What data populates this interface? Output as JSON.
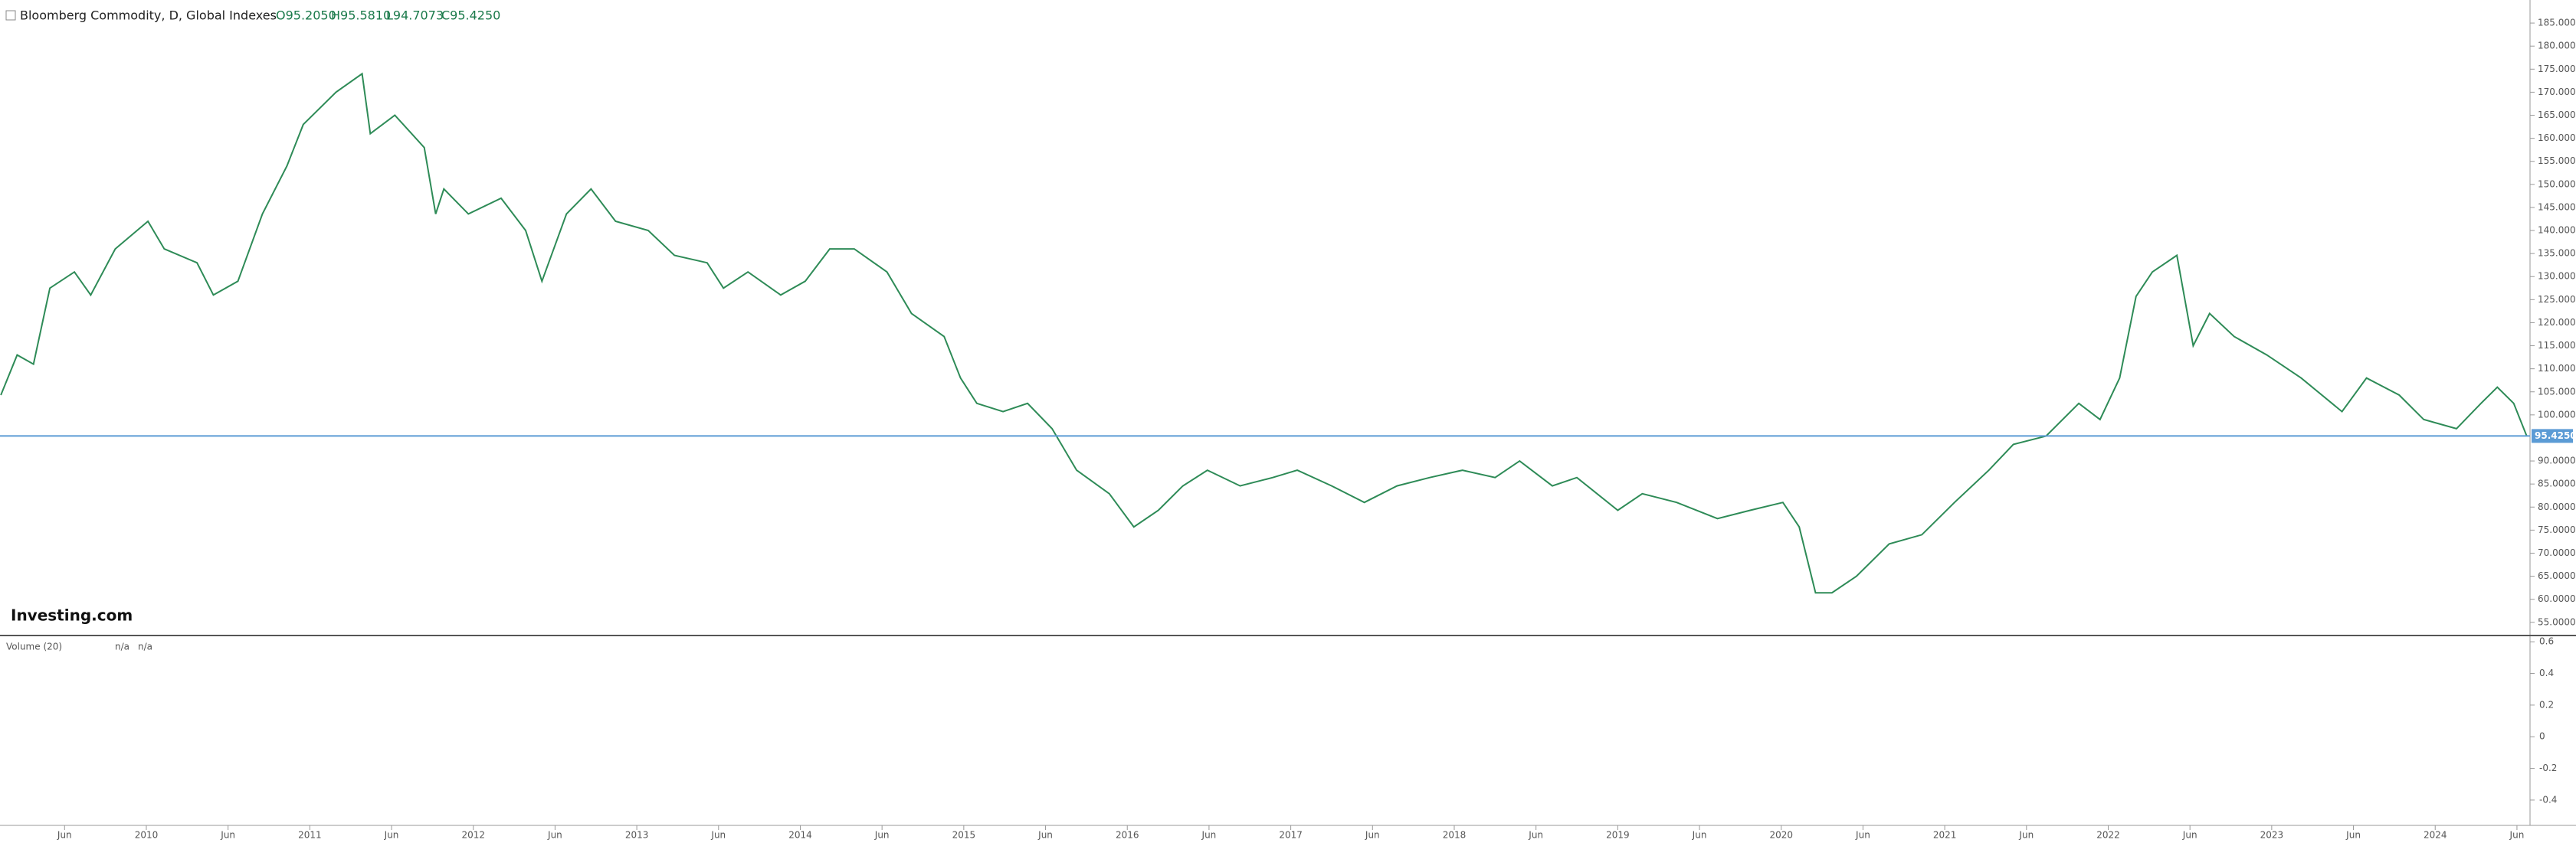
{
  "chart_data": [
    {
      "type": "line",
      "title": "Bloomberg Commodity, D, Global Indexes",
      "ohlc": [
        "O95.2050",
        "H95.5810",
        "L94.7073",
        "C95.4250"
      ],
      "watermark": "Investing.com",
      "series": [
        {
          "name": "Bloomberg Commodity",
          "color": "#2e8b57",
          "x": [
            2009.11,
            2009.21,
            2009.31,
            2009.41,
            2009.56,
            2009.66,
            2009.81,
            2010.01,
            2010.11,
            2010.31,
            2010.41,
            2010.56,
            2010.71,
            2010.86,
            2010.96,
            2011.16,
            2011.32,
            2011.37,
            2011.52,
            2011.7,
            2011.77,
            2011.82,
            2011.97,
            2012.17,
            2012.32,
            2012.42,
            2012.57,
            2012.72,
            2012.87,
            2013.07,
            2013.23,
            2013.43,
            2013.53,
            2013.68,
            2013.88,
            2014.03,
            2014.18,
            2014.33,
            2014.53,
            2014.68,
            2014.88,
            2014.98,
            2015.08,
            2015.24,
            2015.39,
            2015.54,
            2015.69,
            2015.89,
            2016.04,
            2016.19,
            2016.34,
            2016.49,
            2016.69,
            2016.89,
            2017.04,
            2017.25,
            2017.45,
            2017.65,
            2017.85,
            2018.05,
            2018.25,
            2018.4,
            2018.6,
            2018.75,
            2019.0,
            2019.15,
            2019.36,
            2019.61,
            2019.81,
            2020.01,
            2020.11,
            2020.21,
            2020.31,
            2020.46,
            2020.66,
            2020.86,
            2021.06,
            2021.27,
            2021.42,
            2021.62,
            2021.82,
            2021.95,
            2022.07,
            2022.17,
            2022.27,
            2022.42,
            2022.52,
            2022.62,
            2022.77,
            2022.97,
            2023.18,
            2023.43,
            2023.58,
            2023.78,
            2023.93,
            2024.13,
            2024.28,
            2024.38,
            2024.48,
            2024.56
          ],
          "values": [
            104.3,
            113,
            111,
            127.5,
            131,
            126,
            136,
            142,
            136,
            133,
            126,
            129,
            143.6,
            154,
            163,
            170,
            174,
            161,
            165,
            158,
            143.6,
            149,
            143.6,
            147,
            140,
            129,
            143.6,
            149,
            142,
            140,
            134.6,
            133,
            127.5,
            131,
            126,
            129,
            136,
            136,
            131,
            122,
            117,
            108,
            102.5,
            100.7,
            102.5,
            97,
            88,
            82.9,
            75.7,
            79.3,
            84.6,
            88,
            84.6,
            86.4,
            88,
            84.6,
            81,
            84.6,
            86.4,
            88,
            86.4,
            90,
            84.6,
            86.4,
            79.3,
            82.9,
            81,
            77.5,
            79.3,
            81,
            75.7,
            61.4,
            61.4,
            65,
            72,
            74,
            81,
            88,
            93.6,
            95.4,
            102.5,
            99,
            108,
            125.7,
            131,
            134.6,
            115,
            122,
            117,
            113,
            108,
            100.7,
            108,
            104.3,
            99,
            97,
            102.5,
            106,
            102.5,
            95.4
          ]
        }
      ],
      "last": {
        "value": 95.425,
        "label": "95.4250"
      },
      "last_color": "#5b9bd5",
      "xlim": [
        2009.105,
        2024.58
      ],
      "xticks": [
        {
          "value": 2009.5,
          "label": "Jun"
        },
        {
          "value": 2010,
          "label": "2010"
        },
        {
          "value": 2010.5,
          "label": "Jun"
        },
        {
          "value": 2011,
          "label": "2011"
        },
        {
          "value": 2011.5,
          "label": "Jun"
        },
        {
          "value": 2012,
          "label": "2012"
        },
        {
          "value": 2012.5,
          "label": "Jun"
        },
        {
          "value": 2013,
          "label": "2013"
        },
        {
          "value": 2013.5,
          "label": "Jun"
        },
        {
          "value": 2014,
          "label": "2014"
        },
        {
          "value": 2014.5,
          "label": "Jun"
        },
        {
          "value": 2015,
          "label": "2015"
        },
        {
          "value": 2015.5,
          "label": "Jun"
        },
        {
          "value": 2016,
          "label": "2016"
        },
        {
          "value": 2016.5,
          "label": "Jun"
        },
        {
          "value": 2017,
          "label": "2017"
        },
        {
          "value": 2017.5,
          "label": "Jun"
        },
        {
          "value": 2018,
          "label": "2018"
        },
        {
          "value": 2018.5,
          "label": "Jun"
        },
        {
          "value": 2019,
          "label": "2019"
        },
        {
          "value": 2019.5,
          "label": "Jun"
        },
        {
          "value": 2020,
          "label": "2020"
        },
        {
          "value": 2020.5,
          "label": "Jun"
        },
        {
          "value": 2021,
          "label": "2021"
        },
        {
          "value": 2021.5,
          "label": "Jun"
        },
        {
          "value": 2022,
          "label": "2022"
        },
        {
          "value": 2022.5,
          "label": "Jun"
        },
        {
          "value": 2023,
          "label": "2023"
        },
        {
          "value": 2023.5,
          "label": "Jun"
        },
        {
          "value": 2024,
          "label": "2024"
        },
        {
          "value": 2024.5,
          "label": "Jun"
        }
      ],
      "ylim": [
        52.14,
        190
      ],
      "yticks": [
        {
          "value": 185,
          "label": "185.0000"
        },
        {
          "value": 180,
          "label": "180.0000"
        },
        {
          "value": 175,
          "label": "175.0000"
        },
        {
          "value": 170,
          "label": "170.0000"
        },
        {
          "value": 165,
          "label": "165.0000"
        },
        {
          "value": 160,
          "label": "160.0000"
        },
        {
          "value": 155,
          "label": "155.0000"
        },
        {
          "value": 150,
          "label": "150.0000"
        },
        {
          "value": 145,
          "label": "145.0000"
        },
        {
          "value": 140,
          "label": "140.0000"
        },
        {
          "value": 135,
          "label": "135.0000"
        },
        {
          "value": 130,
          "label": "130.0000"
        },
        {
          "value": 125,
          "label": "125.0000"
        },
        {
          "value": 120,
          "label": "120.0000"
        },
        {
          "value": 115,
          "label": "115.0000"
        },
        {
          "value": 110,
          "label": "110.0000"
        },
        {
          "value": 105,
          "label": "105.0000"
        },
        {
          "value": 100,
          "label": "100.0000"
        },
        {
          "value": 90,
          "label": "90.0000"
        },
        {
          "value": 85,
          "label": "85.0000"
        },
        {
          "value": 80,
          "label": "80.0000"
        },
        {
          "value": 75,
          "label": "75.0000"
        },
        {
          "value": 70,
          "label": "70.0000"
        },
        {
          "value": 65,
          "label": "65.0000"
        },
        {
          "value": 60,
          "label": "60.0000"
        },
        {
          "value": 55,
          "label": "55.0000"
        }
      ]
    },
    {
      "type": "volume",
      "title": "Volume (20)",
      "legend_values": [
        "n/a",
        "n/a"
      ],
      "ylim": [
        -0.56,
        0.63
      ],
      "yticks": [
        0.6,
        0.4,
        0.2,
        0,
        -0.2,
        -0.4
      ]
    }
  ]
}
